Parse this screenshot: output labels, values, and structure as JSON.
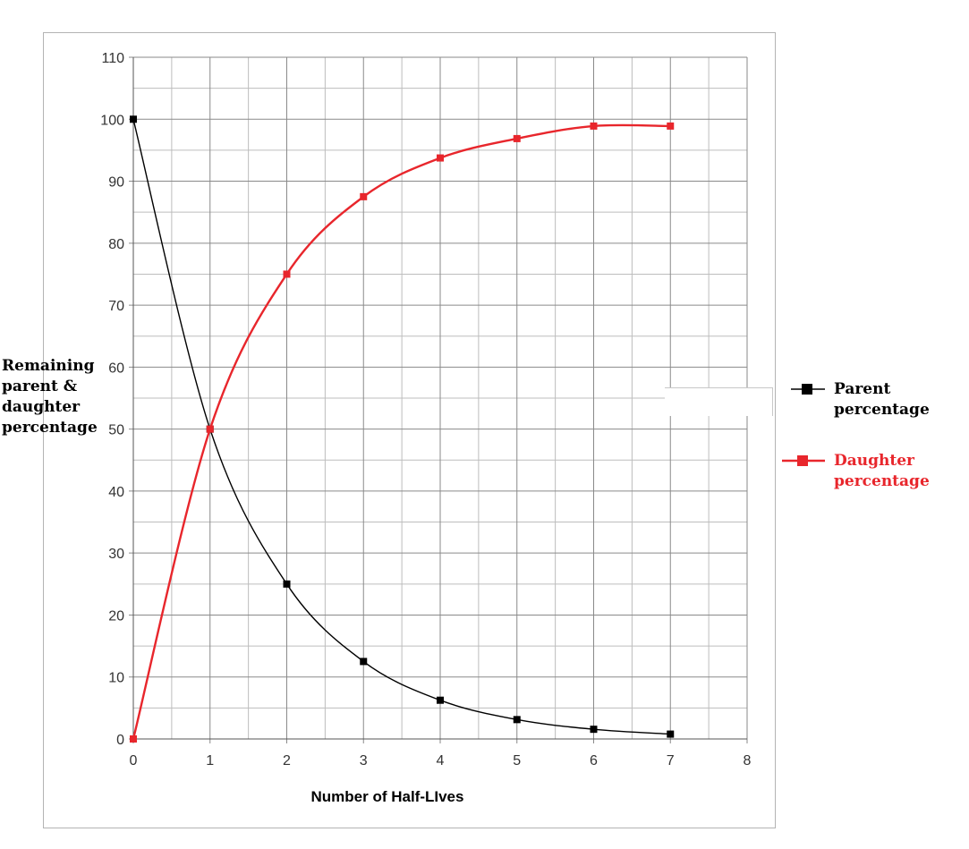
{
  "chart_data": {
    "type": "line",
    "title": "",
    "xlabel": "Number of Half-LIves",
    "ylabel": "Remaining\nparent &\ndaughter\npercentage",
    "xlim": [
      0,
      8
    ],
    "ylim": [
      0,
      110
    ],
    "x_ticks": [
      "0",
      "1",
      "2",
      "3",
      "4",
      "5",
      "6",
      "7",
      "8"
    ],
    "y_ticks": [
      "0",
      "10",
      "20",
      "30",
      "40",
      "50",
      "60",
      "70",
      "80",
      "90",
      "100",
      "110"
    ],
    "grid": true,
    "legend_position": "right",
    "smooth": true,
    "x": [
      0,
      1,
      2,
      3,
      4,
      5,
      6,
      7
    ],
    "series": [
      {
        "name": "Parent\npercentage",
        "color": "#000000",
        "marker": "square",
        "values": [
          100,
          50,
          25,
          12.5,
          6.25,
          3.125,
          1.5625,
          0.78125
        ]
      },
      {
        "name": "Daughter\npercentage",
        "color": "#e8262c",
        "marker": "square",
        "values": [
          0,
          50,
          75,
          87.5,
          93.75,
          96.875,
          98.9,
          98.9
        ]
      }
    ]
  }
}
